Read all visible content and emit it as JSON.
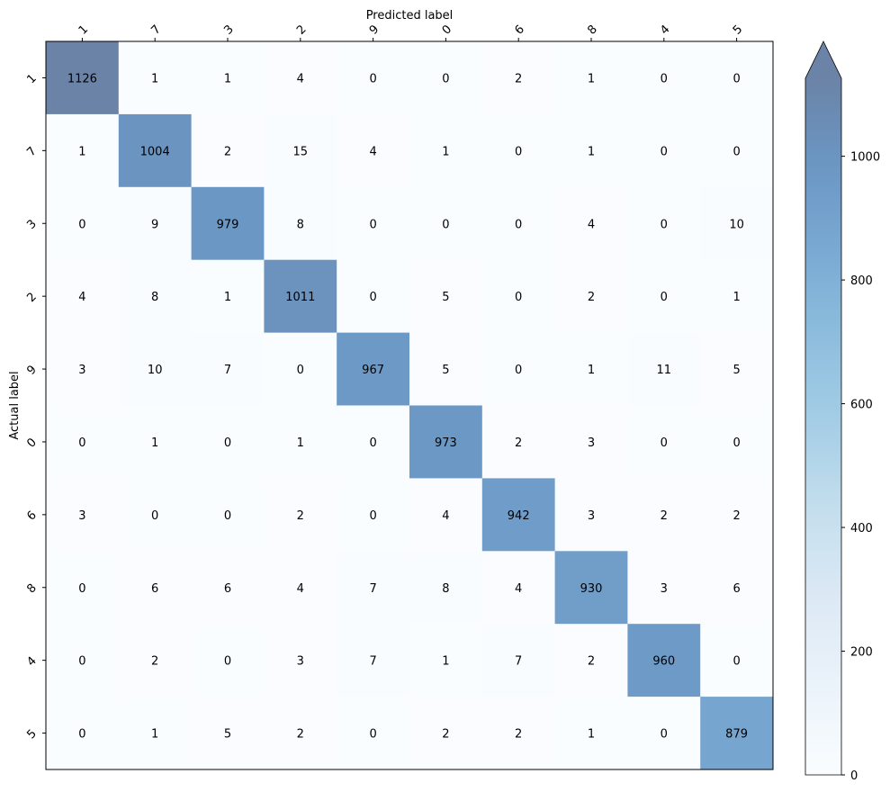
{
  "chart_data": {
    "type": "heatmap",
    "xlabel": "Predicted label",
    "ylabel": "Actual label",
    "x_categories": [
      "1",
      "7",
      "3",
      "2",
      "9",
      "0",
      "6",
      "8",
      "4",
      "5"
    ],
    "y_categories": [
      "1",
      "7",
      "3",
      "2",
      "9",
      "0",
      "6",
      "8",
      "4",
      "5"
    ],
    "values": [
      [
        1126,
        1,
        1,
        4,
        0,
        0,
        2,
        1,
        0,
        0
      ],
      [
        1,
        1004,
        2,
        15,
        4,
        1,
        0,
        1,
        0,
        0
      ],
      [
        0,
        9,
        979,
        8,
        0,
        0,
        0,
        4,
        0,
        10
      ],
      [
        4,
        8,
        1,
        1011,
        0,
        5,
        0,
        2,
        0,
        1
      ],
      [
        3,
        10,
        7,
        0,
        967,
        5,
        0,
        1,
        11,
        5
      ],
      [
        0,
        1,
        0,
        1,
        0,
        973,
        2,
        3,
        0,
        0
      ],
      [
        3,
        0,
        0,
        2,
        0,
        4,
        942,
        3,
        2,
        2
      ],
      [
        0,
        6,
        6,
        4,
        7,
        8,
        4,
        930,
        3,
        6
      ],
      [
        0,
        2,
        0,
        3,
        7,
        1,
        7,
        2,
        960,
        0
      ],
      [
        0,
        1,
        5,
        2,
        0,
        2,
        2,
        1,
        0,
        879
      ]
    ],
    "colorbar": {
      "min": 0,
      "max": 1126,
      "ticks": [
        0,
        200,
        400,
        600,
        800,
        1000
      ],
      "extend": "max",
      "colormap": "Blues"
    },
    "x_tick_position": "top",
    "grid": false
  }
}
